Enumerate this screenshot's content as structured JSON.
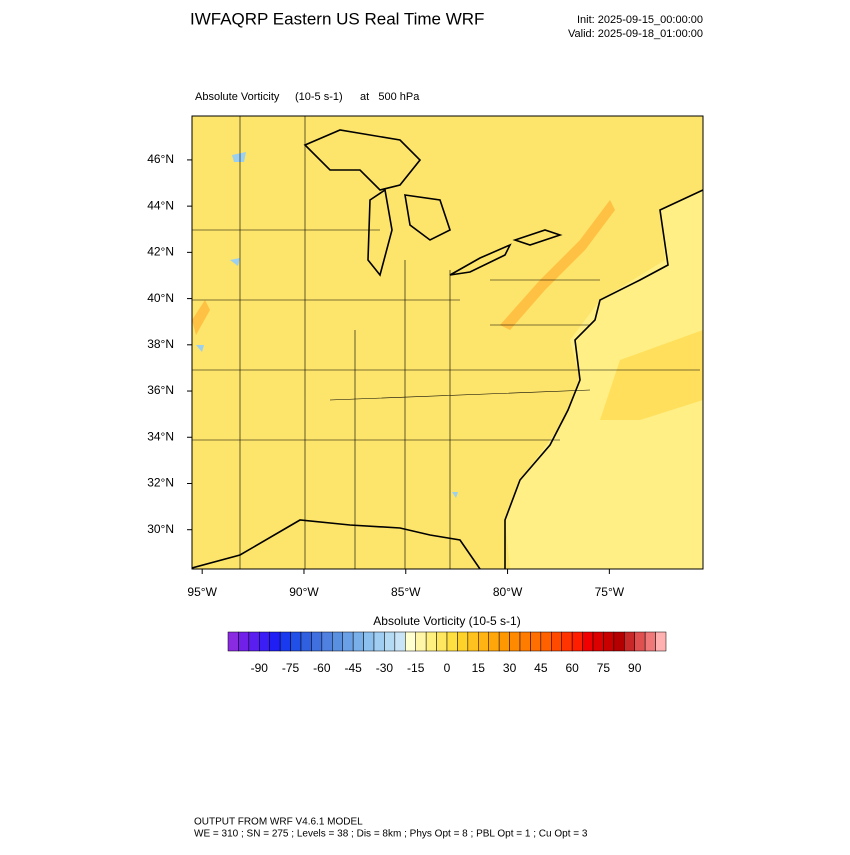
{
  "header": {
    "title": "IWFAQRP Eastern US Real Time WRF",
    "init": "Init: 2025-09-15_00:00:00",
    "valid": "Valid: 2025-09-18_01:00:00"
  },
  "map": {
    "field": "Absolute Vorticity",
    "units": "(10-5 s-1)",
    "level": "at   500 hPa",
    "xlim": [
      -95.5,
      -70.4
    ],
    "ylim": [
      28.3,
      47.9
    ],
    "xticks": [
      {
        "value": -95,
        "label": "95°W"
      },
      {
        "value": -90,
        "label": "90°W"
      },
      {
        "value": -85,
        "label": "85°W"
      },
      {
        "value": -80,
        "label": "80°W"
      },
      {
        "value": -75,
        "label": "75°W"
      }
    ],
    "yticks": [
      {
        "value": 30,
        "label": "30°N"
      },
      {
        "value": 32,
        "label": "32°N"
      },
      {
        "value": 34,
        "label": "34°N"
      },
      {
        "value": 36,
        "label": "36°N"
      },
      {
        "value": 38,
        "label": "38°N"
      },
      {
        "value": 40,
        "label": "40°N"
      },
      {
        "value": 42,
        "label": "42°N"
      },
      {
        "value": 44,
        "label": "44°N"
      },
      {
        "value": 46,
        "label": "46°N"
      }
    ]
  },
  "colorbar": {
    "title": "Absolute Vorticity  (10-5 s-1)",
    "lim": [
      -105,
      105
    ],
    "ticks": [
      -90,
      -75,
      -60,
      -45,
      -30,
      -15,
      0,
      15,
      30,
      45,
      60,
      75,
      90
    ],
    "colors": [
      "#8a2be2",
      "#7020e8",
      "#5a1ff0",
      "#3a1ef5",
      "#1e1ef5",
      "#1a3af0",
      "#2050e8",
      "#3060e0",
      "#4070e0",
      "#5080e0",
      "#5a90e0",
      "#6aa0e6",
      "#7ab0ea",
      "#8cc0ee",
      "#a0cef2",
      "#b4daf4",
      "#c8e4f6",
      "#ffffd0",
      "#fff6a8",
      "#fff080",
      "#ffe860",
      "#ffe040",
      "#ffd22a",
      "#ffc21e",
      "#ffb414",
      "#ffa60a",
      "#ff9800",
      "#ff8a00",
      "#ff7c00",
      "#ff6e00",
      "#ff6000",
      "#ff4a00",
      "#ff3400",
      "#ff1e00",
      "#f00000",
      "#dc0000",
      "#c80000",
      "#b40000",
      "#c82828",
      "#e05050",
      "#f07878",
      "#ffb0b0"
    ]
  },
  "footer": {
    "line1": "OUTPUT FROM WRF V4.6.1 MODEL",
    "line2": "WE = 310 ; SN = 275 ; Levels = 38 ; Dis = 8km ; Phys Opt = 8 ; PBL Opt = 1 ; Cu Opt = 3"
  }
}
